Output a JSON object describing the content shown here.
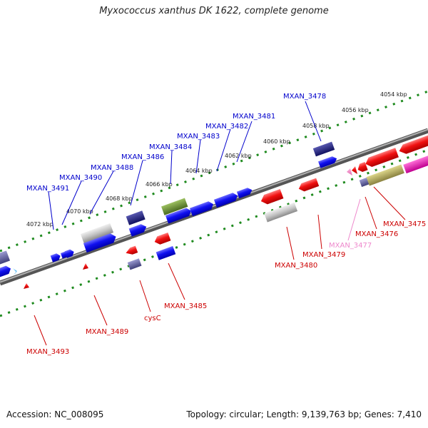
{
  "title": "Myxococcus xanthus DK 1622, complete genome",
  "footer": {
    "accession": "Accession: NC_008095",
    "stats": "Topology: circular; Length: 9,139,763 bp; Genes: 7,410"
  },
  "colors": {
    "backbone": "#7a7a7a",
    "ruler": "#1e8a1e",
    "forward_label": "#0000cc",
    "reverse_label": "#cc0000",
    "pseudo_label": "#ee88cc"
  },
  "kbp_ticks": [
    "4054 kbp",
    "4056 kbp",
    "4058 kbp",
    "4060 kbp",
    "4062 kbp",
    "4064 kbp",
    "4066 kbp",
    "4068 kbp",
    "4070 kbp",
    "4072 kbp"
  ],
  "forward_labels": [
    "MXAN_3478",
    "MXAN_3481",
    "MXAN_3482",
    "MXAN_3483",
    "MXAN_3484",
    "MXAN_3486",
    "MXAN_3488",
    "MXAN_3490",
    "MXAN_3491"
  ],
  "reverse_labels": [
    "MXAN_3475",
    "MXAN_3476",
    "MXAN_3477",
    "MXAN_3479",
    "MXAN_3480",
    "MXAN_3485",
    "cysC",
    "MXAN_3489",
    "MXAN_3493"
  ]
}
